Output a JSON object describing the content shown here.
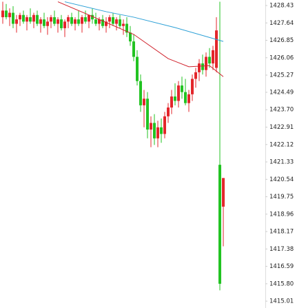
{
  "chart_data": {
    "type": "candlestick",
    "ylim": [
      1414.7,
      1428.68
    ],
    "yticks": [
      1428.43,
      1427.64,
      1426.85,
      1426.06,
      1425.27,
      1424.49,
      {
        "value": 1423.7,
        "label": "1423.70"
      },
      1422.91,
      1422.12,
      1421.33,
      1420.54,
      1419.75,
      1418.96,
      1418.17,
      1417.38,
      1416.59,
      {
        "value": 1415.8,
        "label": "1415.80"
      },
      1415.01
    ],
    "up_color": "#e3262b",
    "down_color": "#22c322",
    "ohlc": [
      [
        1427.9,
        1428.6,
        1427.6,
        1428.2
      ],
      [
        1428.2,
        1428.5,
        1427.8,
        1427.9
      ],
      [
        1427.9,
        1428.3,
        1427.5,
        1428.1
      ],
      [
        1428.1,
        1428.4,
        1427.4,
        1427.6
      ],
      [
        1427.6,
        1428.0,
        1427.2,
        1427.8
      ],
      [
        1427.8,
        1428.1,
        1427.5,
        1428.0
      ],
      [
        1428.0,
        1428.2,
        1427.6,
        1427.7
      ],
      [
        1427.7,
        1428.0,
        1427.3,
        1427.9
      ],
      [
        1427.9,
        1428.3,
        1427.6,
        1427.7
      ],
      [
        1427.7,
        1428.1,
        1427.4,
        1428.0
      ],
      [
        1428.0,
        1428.2,
        1427.5,
        1427.6
      ],
      [
        1427.6,
        1427.9,
        1427.2,
        1427.8
      ],
      [
        1427.8,
        1428.1,
        1427.4,
        1427.5
      ],
      [
        1427.5,
        1427.9,
        1427.1,
        1427.7
      ],
      [
        1427.7,
        1428.0,
        1427.4,
        1427.9
      ],
      [
        1427.9,
        1428.2,
        1427.5,
        1427.6
      ],
      [
        1427.6,
        1427.9,
        1427.2,
        1427.8
      ],
      [
        1427.8,
        1428.0,
        1427.3,
        1427.4
      ],
      [
        1427.4,
        1427.8,
        1427.0,
        1427.7
      ],
      [
        1427.7,
        1428.0,
        1427.4,
        1427.9
      ],
      [
        1427.9,
        1428.1,
        1427.5,
        1427.6
      ],
      [
        1427.6,
        1427.9,
        1427.3,
        1427.8
      ],
      [
        1427.8,
        1428.2,
        1427.5,
        1427.6
      ],
      [
        1427.6,
        1428.0,
        1427.2,
        1427.9
      ],
      [
        1427.9,
        1428.2,
        1427.6,
        1427.7
      ],
      [
        1427.7,
        1428.0,
        1427.4,
        1428.0
      ],
      [
        1428.0,
        1428.3,
        1427.6,
        1427.8
      ],
      [
        1427.8,
        1428.1,
        1427.5,
        1427.6
      ],
      [
        1427.6,
        1427.9,
        1427.3,
        1427.8
      ],
      [
        1427.8,
        1428.0,
        1427.4,
        1427.5
      ],
      [
        1427.5,
        1427.9,
        1427.2,
        1427.7
      ],
      [
        1427.7,
        1428.0,
        1427.4,
        1427.9
      ],
      [
        1427.9,
        1428.1,
        1427.5,
        1427.6
      ],
      [
        1427.6,
        1427.9,
        1427.3,
        1427.8
      ],
      [
        1427.8,
        1428.0,
        1427.4,
        1427.5
      ],
      [
        1427.5,
        1427.8,
        1427.1,
        1427.6
      ],
      [
        1427.6,
        1427.9,
        1427.0,
        1427.2
      ],
      [
        1427.2,
        1427.5,
        1426.6,
        1426.8
      ],
      [
        1426.8,
        1427.1,
        1425.9,
        1426.1
      ],
      [
        1426.1,
        1426.4,
        1424.8,
        1425.0
      ],
      [
        1425.0,
        1425.3,
        1423.6,
        1423.9
      ],
      [
        1423.9,
        1424.6,
        1422.9,
        1424.2
      ],
      [
        1424.2,
        1424.5,
        1422.4,
        1422.8
      ],
      [
        1422.8,
        1423.4,
        1422.0,
        1423.1
      ],
      [
        1423.1,
        1423.5,
        1422.1,
        1422.4
      ],
      [
        1422.4,
        1423.2,
        1422.0,
        1422.9
      ],
      [
        1422.9,
        1423.3,
        1422.2,
        1422.6
      ],
      [
        1422.6,
        1423.6,
        1422.4,
        1423.4
      ],
      [
        1423.4,
        1424.0,
        1423.1,
        1423.8
      ],
      [
        1423.8,
        1424.6,
        1423.5,
        1424.3
      ],
      [
        1424.3,
        1424.9,
        1423.9,
        1424.1
      ],
      [
        1424.1,
        1425.0,
        1423.8,
        1424.8
      ],
      [
        1424.8,
        1425.2,
        1424.2,
        1424.5
      ],
      [
        1424.5,
        1425.1,
        1423.9,
        1424.0
      ],
      [
        1424.0,
        1424.6,
        1423.6,
        1424.4
      ],
      [
        1424.4,
        1425.3,
        1424.1,
        1425.1
      ],
      [
        1425.1,
        1425.6,
        1424.7,
        1425.4
      ],
      [
        1425.4,
        1426.0,
        1425.0,
        1425.8
      ],
      [
        1425.8,
        1426.2,
        1425.3,
        1425.5
      ],
      [
        1425.5,
        1426.3,
        1425.2,
        1426.1
      ],
      [
        1426.1,
        1426.5,
        1425.6,
        1425.8
      ],
      [
        1425.8,
        1426.6,
        1425.5,
        1426.4
      ],
      [
        1425.6,
        1427.9,
        1425.4,
        1427.3
      ],
      [
        1421.2,
        1428.6,
        1415.5,
        1415.8
      ],
      [
        1419.3,
        1420.6,
        1417.5,
        1420.6
      ]
    ],
    "ma": [
      {
        "color": "#d0202a",
        "x": [
          16,
          25,
          38,
          48,
          54,
          60,
          64
        ],
        "values": [
          1428.6,
          1428.0,
          1427.12,
          1426.02,
          1425.65,
          1425.7,
          1425.2
        ]
      },
      {
        "color": "#2a9fd6",
        "x": [
          18,
          30,
          38,
          50,
          64
        ],
        "values": [
          1428.6,
          1428.15,
          1427.9,
          1427.43,
          1426.8
        ]
      }
    ]
  }
}
